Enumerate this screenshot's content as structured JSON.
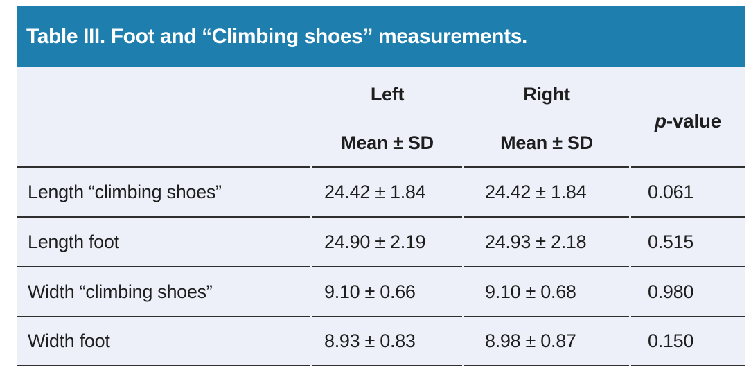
{
  "table": {
    "title": "Table III. Foot and “Climbing shoes” measurements.",
    "header": {
      "left_group_label": "Left",
      "right_group_label": "Right",
      "left_sub_label": "Mean ± SD",
      "right_sub_label": "Mean ± SD",
      "p_label": "p-value"
    },
    "rows": [
      {
        "label": "Length “climbing shoes”",
        "left": "24.42 ± 1.84",
        "right": "24.42 ± 1.84",
        "p": "0.061"
      },
      {
        "label": "Length foot",
        "left": "24.90 ± 2.19",
        "right": "24.93 ± 2.18",
        "p": "0.515"
      },
      {
        "label": "Width “climbing shoes”",
        "left": "9.10 ± 0.66",
        "right": "9.10 ± 0.68",
        "p": "0.980"
      },
      {
        "label": "Width foot",
        "left": "8.93 ± 0.83",
        "right": "8.98 ± 0.87",
        "p": "0.150"
      }
    ],
    "colors": {
      "title_bar": "#1e7eae",
      "title_text": "#ffffff",
      "table_background": "#edf0f8",
      "body_text": "#1e1e1e",
      "rule": "#2f2f2f"
    }
  }
}
